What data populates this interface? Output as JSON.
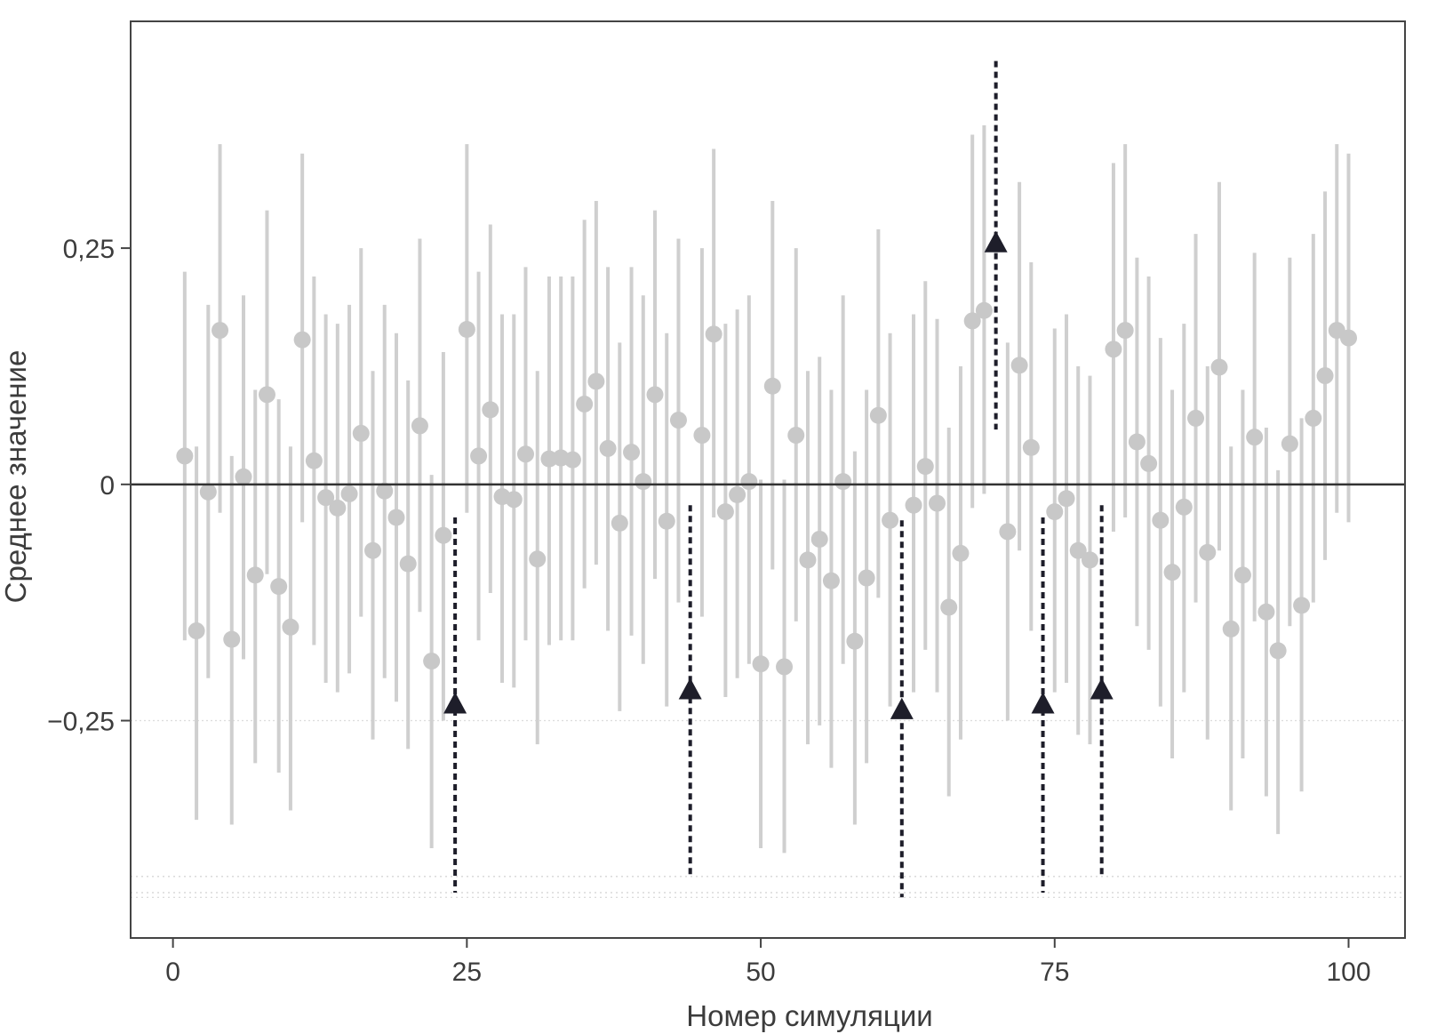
{
  "chart_data": {
    "type": "scatter",
    "title": "",
    "xlabel": "Номер симуляции",
    "ylabel": "Среднее значение",
    "xlim": [
      -3.6,
      104.8
    ],
    "ylim": [
      -0.48,
      0.49
    ],
    "x_ticks": [
      0,
      25,
      50,
      75,
      100
    ],
    "x_tick_labels": [
      "0",
      "25",
      "50",
      "75",
      "100"
    ],
    "y_ticks": [
      0.25,
      0,
      -0.25
    ],
    "y_tick_labels": [
      "0,25",
      "0",
      "−0,25"
    ],
    "reference_line": 0,
    "grid": false,
    "colors": {
      "ci": "#cfcfcf",
      "point": "#c8c8c8",
      "highlight": "#1e1e2a",
      "zero_line": "#333333",
      "frame": "#444444"
    },
    "series": [
      {
        "marker": "circle",
        "x": [
          1,
          2,
          3,
          4,
          5,
          6,
          7,
          8,
          9,
          10,
          11,
          12,
          13,
          14,
          15,
          16,
          17,
          18,
          19,
          20,
          21,
          22,
          23,
          25,
          26,
          27,
          28,
          29,
          30,
          31,
          32,
          33,
          34,
          35,
          36,
          37,
          38,
          39,
          40,
          41,
          42,
          43,
          45,
          46,
          47,
          48,
          49,
          50,
          51,
          52,
          53,
          54,
          55,
          56,
          57,
          58,
          59,
          60,
          61,
          63,
          64,
          65,
          66,
          67,
          68,
          69,
          71,
          72,
          73,
          75,
          76,
          77,
          78,
          80,
          81,
          82,
          83,
          84,
          85,
          86,
          87,
          88,
          89,
          90,
          91,
          92,
          93,
          94,
          95,
          96,
          97,
          98,
          99,
          100
        ],
        "y": [
          0.03,
          -0.155,
          -0.008,
          0.163,
          -0.164,
          0.008,
          -0.096,
          0.095,
          -0.108,
          -0.151,
          0.153,
          0.025,
          -0.014,
          -0.025,
          -0.01,
          0.054,
          -0.07,
          -0.007,
          -0.035,
          -0.084,
          0.062,
          -0.187,
          -0.054,
          0.164,
          0.03,
          0.079,
          -0.013,
          -0.016,
          0.032,
          -0.079,
          0.027,
          0.028,
          0.026,
          0.085,
          0.109,
          0.038,
          -0.041,
          0.034,
          0.003,
          0.095,
          -0.039,
          0.068,
          0.052,
          0.159,
          -0.029,
          -0.011,
          0.003,
          -0.19,
          0.104,
          -0.193,
          0.052,
          -0.08,
          -0.058,
          -0.102,
          0.003,
          -0.166,
          -0.099,
          0.073,
          -0.038,
          -0.022,
          0.019,
          -0.02,
          -0.13,
          -0.073,
          0.173,
          0.184,
          -0.05,
          0.126,
          0.039,
          -0.029,
          -0.015,
          -0.07,
          -0.08,
          0.143,
          0.163,
          0.045,
          0.022,
          -0.038,
          -0.093,
          -0.024,
          0.07,
          -0.072,
          0.124,
          -0.153,
          -0.096,
          0.05,
          -0.135,
          -0.176,
          0.043,
          -0.128,
          0.07,
          0.115,
          0.163,
          0.155
        ],
        "ci_low": [
          -0.165,
          -0.355,
          -0.205,
          -0.03,
          -0.36,
          -0.185,
          -0.295,
          -0.095,
          -0.305,
          -0.345,
          -0.04,
          -0.17,
          -0.21,
          -0.22,
          -0.2,
          -0.14,
          -0.27,
          -0.205,
          -0.23,
          -0.28,
          -0.135,
          -0.385,
          -0.25,
          -0.03,
          -0.165,
          -0.115,
          -0.21,
          -0.215,
          -0.165,
          -0.275,
          -0.17,
          -0.165,
          -0.165,
          -0.11,
          -0.085,
          -0.155,
          -0.24,
          -0.16,
          -0.19,
          -0.1,
          -0.235,
          -0.125,
          -0.14,
          -0.035,
          -0.225,
          -0.205,
          -0.19,
          -0.385,
          -0.09,
          -0.39,
          -0.145,
          -0.275,
          -0.255,
          -0.3,
          -0.19,
          -0.36,
          -0.295,
          -0.12,
          -0.235,
          -0.22,
          -0.175,
          -0.22,
          -0.33,
          -0.27,
          -0.025,
          -0.01,
          -0.25,
          -0.07,
          -0.155,
          -0.22,
          -0.21,
          -0.265,
          -0.275,
          -0.05,
          -0.035,
          -0.15,
          -0.175,
          -0.235,
          -0.29,
          -0.22,
          -0.125,
          -0.27,
          -0.07,
          -0.345,
          -0.29,
          -0.145,
          -0.33,
          -0.37,
          -0.15,
          -0.325,
          -0.125,
          -0.08,
          -0.03,
          -0.04
        ],
        "ci_high": [
          0.225,
          0.04,
          0.19,
          0.36,
          0.03,
          0.2,
          0.1,
          0.29,
          0.09,
          0.04,
          0.35,
          0.22,
          0.18,
          0.17,
          0.19,
          0.25,
          0.12,
          0.19,
          0.16,
          0.11,
          0.26,
          0.01,
          0.14,
          0.36,
          0.225,
          0.275,
          0.18,
          0.18,
          0.23,
          0.12,
          0.22,
          0.22,
          0.22,
          0.28,
          0.3,
          0.23,
          0.15,
          0.23,
          0.2,
          0.29,
          0.16,
          0.26,
          0.25,
          0.355,
          0.17,
          0.185,
          0.2,
          0.005,
          0.3,
          0.005,
          0.25,
          0.12,
          0.135,
          0.1,
          0.2,
          0.035,
          0.1,
          0.27,
          0.16,
          0.18,
          0.215,
          0.175,
          0.06,
          0.125,
          0.37,
          0.38,
          0.15,
          0.32,
          0.235,
          0.165,
          0.18,
          0.125,
          0.115,
          0.34,
          0.36,
          0.24,
          0.22,
          0.155,
          0.1,
          0.17,
          0.265,
          0.125,
          0.32,
          0.04,
          0.1,
          0.245,
          0.06,
          0.015,
          0.24,
          0.07,
          0.265,
          0.31,
          0.36,
          0.35
        ]
      },
      {
        "marker": "triangle",
        "x": [
          24,
          44,
          62,
          74,
          79,
          70
        ],
        "y": [
          -0.232,
          -0.217,
          -0.238,
          -0.232,
          -0.217,
          0.256
        ],
        "ci_low": [
          -0.432,
          -0.415,
          -0.437,
          -0.432,
          -0.415,
          0.058
        ],
        "ci_high": [
          -0.035,
          -0.022,
          -0.038,
          -0.035,
          -0.022,
          0.448
        ]
      }
    ]
  }
}
